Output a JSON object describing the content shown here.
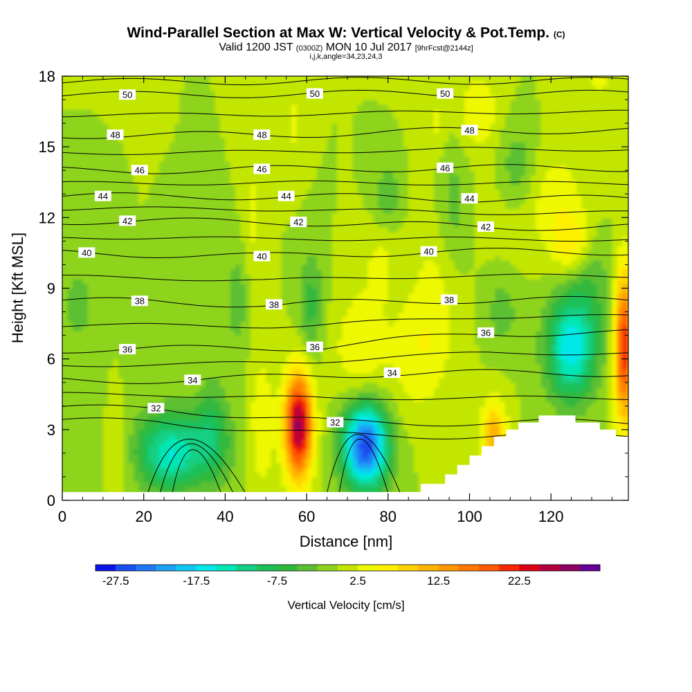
{
  "header": {
    "title": "Wind-Parallel Section at Max W: Vertical Velocity & Pot.Temp.",
    "title_unit": "(C)",
    "valid_prefix": "Valid 1200 JST",
    "valid_utc": "(0300Z)",
    "valid_date": "MON 10 Jul 2017",
    "forecast": "[9hrFcst@2144z]",
    "section_info": "i,j,k,angle=34,23,24,3"
  },
  "chart_data": {
    "type": "heatmap",
    "xlabel": "Distance [nm]",
    "ylabel": "Height [Kft MSL]",
    "xlim": [
      0,
      139
    ],
    "ylim": [
      0,
      18
    ],
    "xticks": [
      "0",
      "20",
      "40",
      "60",
      "80",
      "100",
      "120"
    ],
    "yticks": [
      "0",
      "3",
      "6",
      "9",
      "12",
      "15",
      "18"
    ],
    "colorbar": {
      "title": "Vertical Velocity [cm/s]",
      "labels": [
        "-27.5",
        "-17.5",
        "-7.5",
        "2.5",
        "12.5",
        "22.5"
      ],
      "label_values": [
        -27.5,
        -17.5,
        -7.5,
        2.5,
        12.5,
        22.5
      ],
      "min": -30,
      "step": 2.5,
      "colors": [
        "#0a14e6",
        "#1a4ef0",
        "#1f78f5",
        "#1ea0f5",
        "#10c8f2",
        "#00e8e8",
        "#00e6b4",
        "#12cf82",
        "#1cc058",
        "#30b83c",
        "#5cc030",
        "#8ed41e",
        "#c2e600",
        "#eef800",
        "#fff000",
        "#ffd200",
        "#ffb400",
        "#ff9600",
        "#ff7800",
        "#ff5a00",
        "#f52800",
        "#dc0014",
        "#b4003c",
        "#8c0064",
        "#640096"
      ]
    },
    "wmin": [
      {
        "x": 74.5,
        "y": 2.3,
        "value": -27
      },
      {
        "x": 125,
        "y": 6.5,
        "value": -17
      }
    ],
    "wmax": [
      {
        "x": 58,
        "y": 3.2,
        "value": 28
      }
    ],
    "theta_contours": [
      {
        "value": "50",
        "labels": [
          {
            "x": 16,
            "y": 17.2
          },
          {
            "x": 62,
            "y": 17.25
          },
          {
            "x": 94,
            "y": 17.25
          }
        ]
      },
      {
        "value": "48",
        "labels": [
          {
            "x": 13,
            "y": 15.5
          },
          {
            "x": 49,
            "y": 15.5
          },
          {
            "x": 100,
            "y": 15.7
          }
        ]
      },
      {
        "value": "46",
        "labels": [
          {
            "x": 19,
            "y": 14.0
          },
          {
            "x": 49,
            "y": 14.05
          },
          {
            "x": 94,
            "y": 14.1
          }
        ]
      },
      {
        "value": "44",
        "labels": [
          {
            "x": 10,
            "y": 12.9
          },
          {
            "x": 55,
            "y": 12.9
          },
          {
            "x": 100,
            "y": 12.8
          }
        ]
      },
      {
        "value": "42",
        "labels": [
          {
            "x": 16,
            "y": 11.85
          },
          {
            "x": 58,
            "y": 11.8
          },
          {
            "x": 104,
            "y": 11.6
          }
        ]
      },
      {
        "value": "40",
        "labels": [
          {
            "x": 6,
            "y": 10.5
          },
          {
            "x": 49,
            "y": 10.35
          },
          {
            "x": 90,
            "y": 10.55
          }
        ]
      },
      {
        "value": "38",
        "labels": [
          {
            "x": 19,
            "y": 8.45
          },
          {
            "x": 52,
            "y": 8.3
          },
          {
            "x": 95,
            "y": 8.5
          }
        ]
      },
      {
        "value": "36",
        "labels": [
          {
            "x": 16,
            "y": 6.4
          },
          {
            "x": 62,
            "y": 6.5
          },
          {
            "x": 104,
            "y": 7.1
          }
        ]
      },
      {
        "value": "34",
        "labels": [
          {
            "x": 32,
            "y": 5.1
          },
          {
            "x": 81,
            "y": 5.4
          }
        ]
      },
      {
        "value": "32",
        "labels": [
          {
            "x": 23,
            "y": 3.9
          },
          {
            "x": 67,
            "y": 3.3
          }
        ]
      }
    ]
  }
}
